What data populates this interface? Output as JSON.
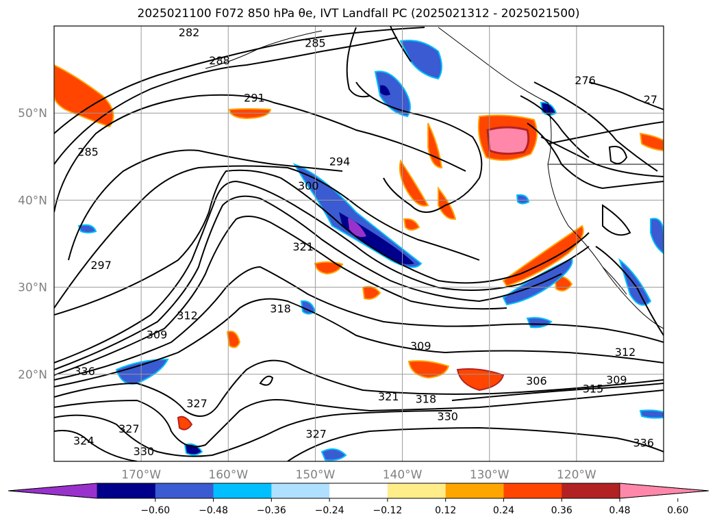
{
  "chart_data": {
    "type": "contour-map",
    "title": "2025021100 F072 850 hPa θe, IVT Landfall PC (2025021312 - 2025021500)",
    "map": {
      "lon_range": [
        -180,
        -110
      ],
      "lat_range": [
        10,
        60
      ],
      "lon_ticks": [
        {
          "value": -170,
          "label": "170°W"
        },
        {
          "value": -160,
          "label": "160°W"
        },
        {
          "value": -150,
          "label": "150°W"
        },
        {
          "value": -140,
          "label": "140°W"
        },
        {
          "value": -130,
          "label": "130°W"
        },
        {
          "value": -120,
          "label": "120°W"
        }
      ],
      "lat_ticks": [
        {
          "value": 20,
          "label": "20°N"
        },
        {
          "value": 30,
          "label": "30°N"
        },
        {
          "value": 40,
          "label": "40°N"
        },
        {
          "value": 50,
          "label": "50°N"
        }
      ],
      "grid": true
    },
    "colorbar": {
      "orientation": "horizontal",
      "extend": "both",
      "colors": [
        "#9932cc",
        "#00008b",
        "#3a5bd1",
        "#00bfff",
        "#b0e0ff",
        "#ffffff",
        "#ffed8a",
        "#ffa500",
        "#ff4500",
        "#b22222",
        "#ff88aa"
      ],
      "tick_labels": [
        "−0.60",
        "−0.48",
        "−0.36",
        "−0.24",
        "−0.12",
        "0.12",
        "0.24",
        "0.36",
        "0.48",
        "0.60"
      ]
    },
    "contour_labels": [
      {
        "text": "282",
        "lon": -164.5,
        "lat": 59.2
      },
      {
        "text": "285",
        "lon": -150,
        "lat": 58
      },
      {
        "text": "288",
        "lon": -161,
        "lat": 56
      },
      {
        "text": "291",
        "lon": -157,
        "lat": 51.7
      },
      {
        "text": "285",
        "lon": -176.1,
        "lat": 45.5
      },
      {
        "text": "294",
        "lon": -147.2,
        "lat": 44.4
      },
      {
        "text": "300",
        "lon": -150.8,
        "lat": 41.6
      },
      {
        "text": "297",
        "lon": -174.6,
        "lat": 32.5
      },
      {
        "text": "321",
        "lon": -151.4,
        "lat": 34.6
      },
      {
        "text": "318",
        "lon": -154,
        "lat": 27.5
      },
      {
        "text": "312",
        "lon": -164.7,
        "lat": 26.7
      },
      {
        "text": "309",
        "lon": -168.2,
        "lat": 24.5
      },
      {
        "text": "309",
        "lon": -137.9,
        "lat": 23.2
      },
      {
        "text": "312",
        "lon": -114.4,
        "lat": 22.5
      },
      {
        "text": "306",
        "lon": -124.6,
        "lat": 19.2
      },
      {
        "text": "309",
        "lon": -115.4,
        "lat": 19.3
      },
      {
        "text": "315",
        "lon": -118.1,
        "lat": 18.3
      },
      {
        "text": "321",
        "lon": -141.6,
        "lat": 17.4
      },
      {
        "text": "318",
        "lon": -137.3,
        "lat": 17.1
      },
      {
        "text": "330",
        "lon": -134.8,
        "lat": 15.1
      },
      {
        "text": "327",
        "lon": -149.9,
        "lat": 13.1
      },
      {
        "text": "327",
        "lon": -163.6,
        "lat": 16.6
      },
      {
        "text": "327",
        "lon": -171.4,
        "lat": 13.7
      },
      {
        "text": "330",
        "lon": -169.7,
        "lat": 11.1
      },
      {
        "text": "324",
        "lon": -176.6,
        "lat": 12.3
      },
      {
        "text": "336",
        "lon": -176.5,
        "lat": 20.3
      },
      {
        "text": "336",
        "lon": -112.3,
        "lat": 12.1
      },
      {
        "text": "276",
        "lon": -119,
        "lat": 53.7
      },
      {
        "text": "27",
        "lon": -111.5,
        "lat": 51.5
      }
    ]
  }
}
